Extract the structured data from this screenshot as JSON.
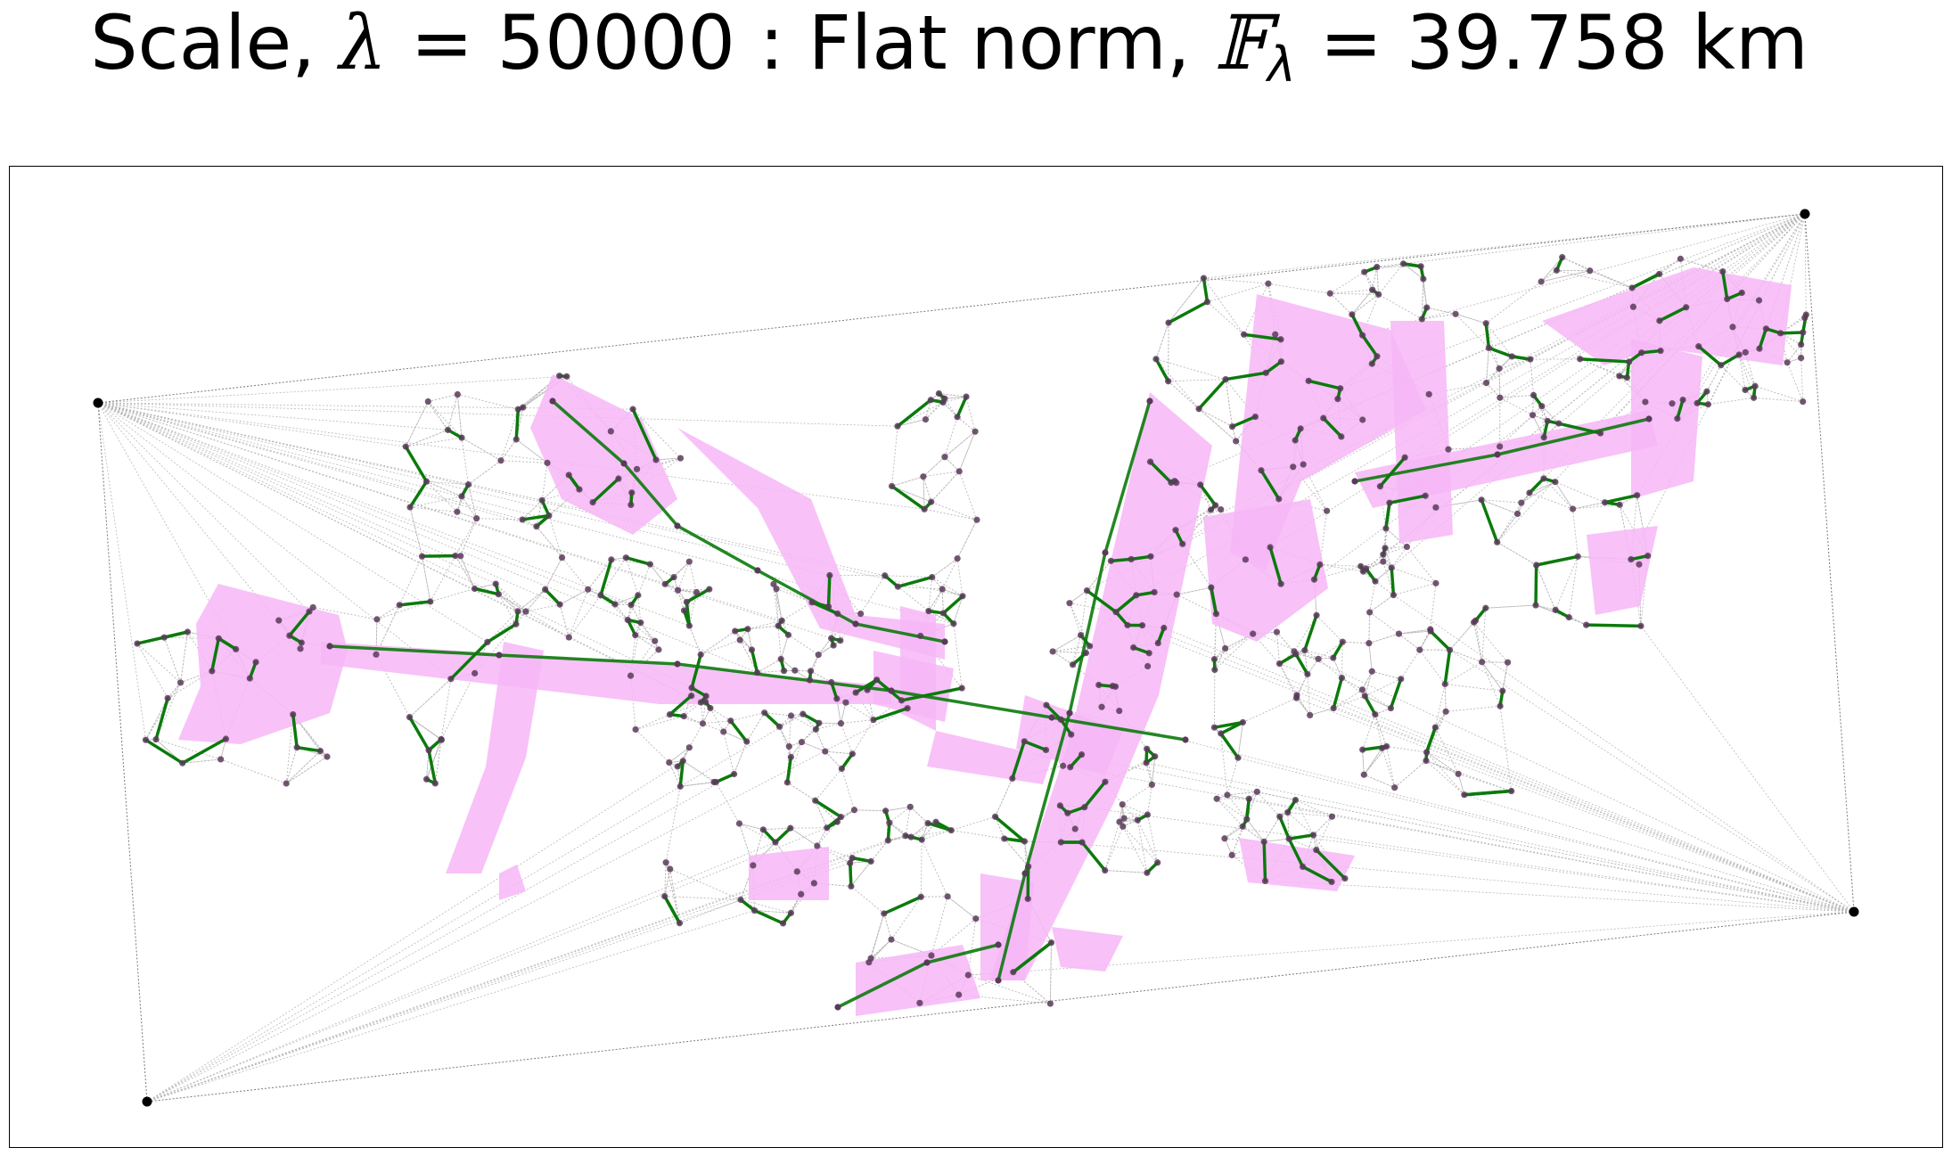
{
  "title": {
    "prefix": "Scale, ",
    "lambda_symbol": "λ",
    "scale_eq": " = 50000  :  Flat norm, ",
    "norm_symbol": "𝔽",
    "norm_sub": "λ",
    "norm_eq": " = 39.758 km"
  },
  "colors": {
    "background": "#ffffff",
    "triangulation_edge": "#b8b8b8",
    "current_edge": "#0b7a0b",
    "region_fill": "#f7b6f7",
    "node": "#5a3a5a",
    "corner_node": "#000000"
  },
  "legend": {}
}
